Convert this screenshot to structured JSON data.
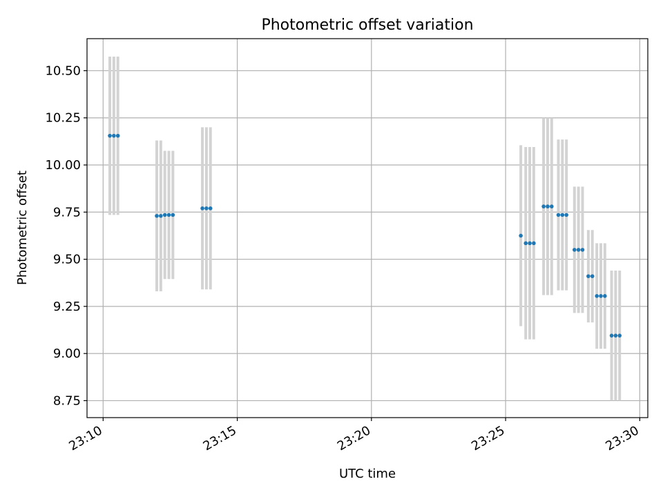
{
  "chart_data": {
    "type": "scatter",
    "title": "Photometric offset variation",
    "xlabel": "UTC time",
    "ylabel": "Photometric offset",
    "x_axis_kind": "time",
    "xlim": [
      "23:09:24",
      "23:30:18"
    ],
    "ylim": [
      8.66,
      10.67
    ],
    "x_ticks": [
      "23:10",
      "23:15",
      "23:20",
      "23:25",
      "23:30"
    ],
    "y_ticks": [
      8.75,
      9.0,
      9.25,
      9.5,
      9.75,
      10.0,
      10.25,
      10.5
    ],
    "y_tick_labels": [
      "8.75",
      "9.00",
      "9.25",
      "9.50",
      "9.75",
      "10.00",
      "10.25",
      "10.50"
    ],
    "grid": true,
    "series": [
      {
        "marker": "point",
        "color": "#1f77b4",
        "error_color": "#d3d3d3",
        "points": [
          {
            "t": "23:10:15",
            "y": 10.155,
            "err": 0.42
          },
          {
            "t": "23:10:24",
            "y": 10.155,
            "err": 0.42
          },
          {
            "t": "23:10:33",
            "y": 10.155,
            "err": 0.42
          },
          {
            "t": "23:12:00",
            "y": 9.73,
            "err": 0.4
          },
          {
            "t": "23:12:09",
            "y": 9.73,
            "err": 0.4
          },
          {
            "t": "23:12:18",
            "y": 9.735,
            "err": 0.34
          },
          {
            "t": "23:12:27",
            "y": 9.735,
            "err": 0.34
          },
          {
            "t": "23:12:36",
            "y": 9.735,
            "err": 0.34
          },
          {
            "t": "23:13:42",
            "y": 9.77,
            "err": 0.43
          },
          {
            "t": "23:13:51",
            "y": 9.77,
            "err": 0.43
          },
          {
            "t": "23:14:00",
            "y": 9.77,
            "err": 0.43
          },
          {
            "t": "23:25:34",
            "y": 9.625,
            "err": 0.48
          },
          {
            "t": "23:25:45",
            "y": 9.585,
            "err": 0.51
          },
          {
            "t": "23:25:54",
            "y": 9.585,
            "err": 0.51
          },
          {
            "t": "23:26:03",
            "y": 9.585,
            "err": 0.51
          },
          {
            "t": "23:26:25",
            "y": 9.78,
            "err": 0.47
          },
          {
            "t": "23:26:34",
            "y": 9.78,
            "err": 0.47
          },
          {
            "t": "23:26:43",
            "y": 9.78,
            "err": 0.47
          },
          {
            "t": "23:26:58",
            "y": 9.735,
            "err": 0.4
          },
          {
            "t": "23:27:07",
            "y": 9.735,
            "err": 0.4
          },
          {
            "t": "23:27:16",
            "y": 9.735,
            "err": 0.4
          },
          {
            "t": "23:27:34",
            "y": 9.55,
            "err": 0.335
          },
          {
            "t": "23:27:43",
            "y": 9.55,
            "err": 0.335
          },
          {
            "t": "23:27:52",
            "y": 9.55,
            "err": 0.335
          },
          {
            "t": "23:28:05",
            "y": 9.41,
            "err": 0.245
          },
          {
            "t": "23:28:14",
            "y": 9.41,
            "err": 0.245
          },
          {
            "t": "23:28:24",
            "y": 9.305,
            "err": 0.28
          },
          {
            "t": "23:28:33",
            "y": 9.305,
            "err": 0.28
          },
          {
            "t": "23:28:42",
            "y": 9.305,
            "err": 0.28
          },
          {
            "t": "23:28:57",
            "y": 9.095,
            "err": 0.345
          },
          {
            "t": "23:29:06",
            "y": 9.095,
            "err": 0.345
          },
          {
            "t": "23:29:15",
            "y": 9.095,
            "err": 0.345
          }
        ]
      }
    ]
  }
}
